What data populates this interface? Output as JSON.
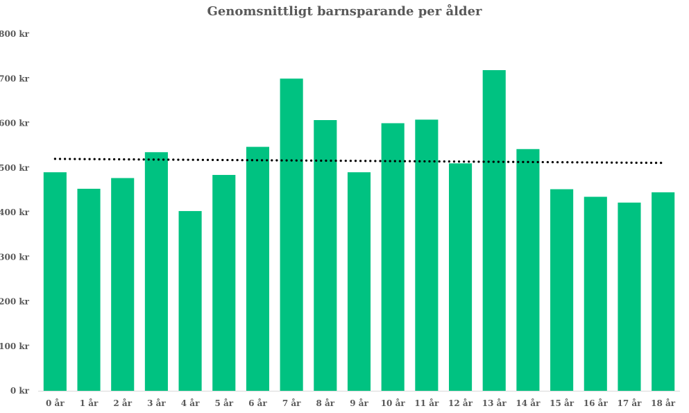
{
  "chart_data": {
    "type": "bar",
    "title": "Genomsnittligt barnsparande per ålder",
    "xlabel": "",
    "ylabel": "",
    "categories": [
      "0 år",
      "1 år",
      "2 år",
      "3 år",
      "4 år",
      "5 år",
      "6 år",
      "7 år",
      "8 år",
      "9 år",
      "10 år",
      "11 år",
      "12 år",
      "13 år",
      "14 år",
      "15 år",
      "16 år",
      "17 år",
      "18 år"
    ],
    "values": [
      490,
      453,
      477,
      535,
      403,
      484,
      547,
      700,
      607,
      490,
      600,
      608,
      510,
      719,
      542,
      452,
      435,
      422,
      445
    ],
    "ylim": [
      0,
      800
    ],
    "y_ticks": [
      "0 kr",
      "100 kr",
      "200 kr",
      "300 kr",
      "400 kr",
      "500 kr",
      "600 kr",
      "700 kr",
      "800 kr"
    ],
    "y_tick_values": [
      0,
      100,
      200,
      300,
      400,
      500,
      600,
      700,
      800
    ],
    "trendline": {
      "type": "linear",
      "style": "dotted",
      "start": 520,
      "end": 511,
      "color": "#000000"
    },
    "bar_color": "#00c281",
    "grid": false,
    "legend": "none"
  }
}
